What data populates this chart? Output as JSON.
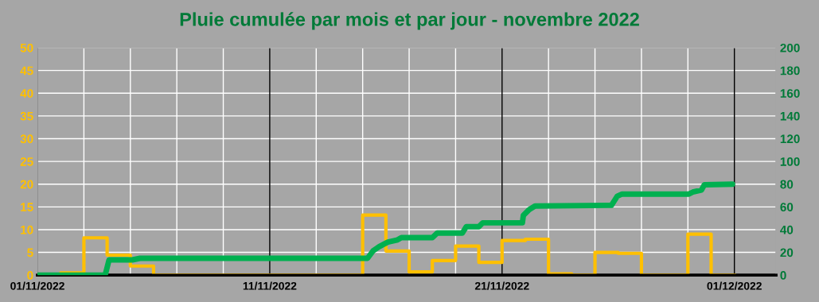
{
  "chart_data": {
    "type": "step",
    "title": "Pluie cumulée par mois et par jour - novembre 2022",
    "series": [
      {
        "axis": "y",
        "color": "#ffc000",
        "x": [
          "2022-11-01",
          "2022-11-02",
          "2022-11-03",
          "2022-11-04",
          "2022-11-05",
          "2022-11-06",
          "2022-11-07",
          "2022-11-08",
          "2022-11-09",
          "2022-11-10",
          "2022-11-11",
          "2022-11-12",
          "2022-11-13",
          "2022-11-14",
          "2022-11-15",
          "2022-11-16",
          "2022-11-17",
          "2022-11-18",
          "2022-11-19",
          "2022-11-20",
          "2022-11-21",
          "2022-11-22",
          "2022-11-23",
          "2022-11-24",
          "2022-11-25",
          "2022-11-26",
          "2022-11-27",
          "2022-11-28",
          "2022-11-29",
          "2022-11-30",
          "2022-12-01"
        ],
        "values": [
          0,
          0.5,
          8.2,
          4.4,
          2.0,
          0,
          0,
          0,
          0,
          0,
          0,
          0,
          0,
          0,
          13.2,
          5.3,
          0.7,
          3.2,
          6.4,
          2.8,
          7.6,
          7.9,
          0.3,
          0,
          5.0,
          4.8,
          0,
          0,
          9.0,
          0,
          0
        ]
      },
      {
        "type": "line",
        "axis": "y2",
        "color": "#00b050",
        "x": [
          "2022-11-01T00:00",
          "2022-11-03T22:00",
          "2022-11-04T02:00",
          "2022-11-05T02:00",
          "2022-11-05T10:00",
          "2022-11-15T05:00",
          "2022-11-15T11:00",
          "2022-11-15T17:00",
          "2022-11-16T02:00",
          "2022-11-16T12:00",
          "2022-11-16T16:00",
          "2022-11-18T00:00",
          "2022-11-18T05:00",
          "2022-11-19T07:00",
          "2022-11-19T11:00",
          "2022-11-20T00:00",
          "2022-11-20T04:00",
          "2022-11-21T21:00",
          "2022-11-21T22:00",
          "2022-11-22T04:00",
          "2022-11-22T10:00",
          "2022-11-25T17:00",
          "2022-11-25T23:00",
          "2022-11-26T04:00",
          "2022-11-29T01:00",
          "2022-11-29T05:00",
          "2022-11-29T14:00",
          "2022-11-29T17:00",
          "2022-11-30T22:00"
        ],
        "values": [
          0,
          0,
          13.4,
          13.4,
          14.8,
          14.8,
          21.6,
          25,
          29,
          31,
          33,
          33,
          37,
          37,
          42.6,
          42.6,
          46,
          46,
          52.5,
          57.6,
          60.7,
          61.4,
          69.4,
          71.3,
          71.3,
          73,
          74.8,
          79.5,
          80
        ]
      }
    ],
    "xlim": [
      "2022-11-01",
      "2022-12-02T19:00"
    ],
    "xticks": [
      {
        "value": "2022-11-01",
        "label": "01/11/2022"
      },
      {
        "value": "2022-11-03",
        "label": null
      },
      {
        "value": "2022-11-05",
        "label": null
      },
      {
        "value": "2022-11-07",
        "label": null
      },
      {
        "value": "2022-11-09",
        "label": null
      },
      {
        "value": "2022-11-11",
        "label": "11/11/2022"
      },
      {
        "value": "2022-11-13",
        "label": null
      },
      {
        "value": "2022-11-15",
        "label": null
      },
      {
        "value": "2022-11-17",
        "label": null
      },
      {
        "value": "2022-11-19",
        "label": null
      },
      {
        "value": "2022-11-21",
        "label": "21/11/2022"
      },
      {
        "value": "2022-11-23",
        "label": null
      },
      {
        "value": "2022-11-25",
        "label": null
      },
      {
        "value": "2022-11-27",
        "label": null
      },
      {
        "value": "2022-11-29",
        "label": null
      },
      {
        "value": "2022-12-01",
        "label": "01/12/2022"
      }
    ],
    "ylim": [
      0,
      50
    ],
    "yticks": [
      0,
      5,
      10,
      15,
      20,
      25,
      30,
      35,
      40,
      45,
      50
    ],
    "y2lim": [
      0,
      200
    ],
    "y2ticks": [
      0,
      20,
      40,
      60,
      80,
      100,
      120,
      140,
      160,
      180,
      200
    ],
    "grid": true,
    "legend": false
  }
}
